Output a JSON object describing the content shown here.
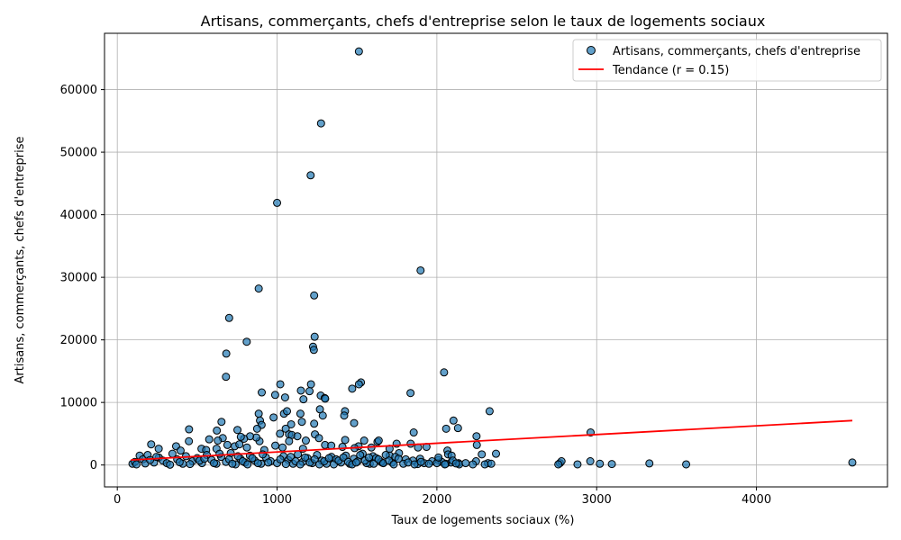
{
  "chart_data": {
    "type": "scatter",
    "title": "Artisans, commerçants, chefs d'entreprise selon le taux de logements sociaux",
    "xlabel": "Taux de logements sociaux (%)",
    "ylabel": "Artisans, commerçants, chefs d'entreprise",
    "xlim": [
      -80,
      4820
    ],
    "ylim": [
      -3500,
      69000
    ],
    "xticks": [
      0,
      1000,
      2000,
      3000,
      4000
    ],
    "yticks": [
      0,
      10000,
      20000,
      30000,
      40000,
      50000,
      60000
    ],
    "grid": true,
    "legend_position": "upper right",
    "colors": {
      "points": "#1f77b4",
      "trend": "#ff0000"
    },
    "series": [
      {
        "name": "Artisans, commerçants, chefs d'entreprise",
        "type": "scatter",
        "points": [
          [
            1512,
            66100
          ],
          [
            1275,
            54600
          ],
          [
            1210,
            46300
          ],
          [
            1000,
            41900
          ],
          [
            1898,
            31100
          ],
          [
            885,
            28200
          ],
          [
            1232,
            27100
          ],
          [
            700,
            23500
          ],
          [
            1235,
            20500
          ],
          [
            810,
            19700
          ],
          [
            1225,
            18900
          ],
          [
            1230,
            18400
          ],
          [
            682,
            17800
          ],
          [
            680,
            14100
          ],
          [
            2045,
            14800
          ],
          [
            1020,
            12900
          ],
          [
            1212,
            12900
          ],
          [
            1525,
            13200
          ],
          [
            1512,
            12900
          ],
          [
            1470,
            12200
          ],
          [
            1149,
            11900
          ],
          [
            1203,
            11800
          ],
          [
            904,
            11600
          ],
          [
            988,
            11200
          ],
          [
            1273,
            11100
          ],
          [
            1298,
            10700
          ],
          [
            1301,
            10600
          ],
          [
            1050,
            10800
          ],
          [
            1165,
            10500
          ],
          [
            1835,
            11500
          ],
          [
            1268,
            8900
          ],
          [
            1425,
            8600
          ],
          [
            1420,
            7900
          ],
          [
            1286,
            7900
          ],
          [
            885,
            8200
          ],
          [
            1043,
            8200
          ],
          [
            1062,
            8600
          ],
          [
            1146,
            8200
          ],
          [
            978,
            7600
          ],
          [
            1155,
            6900
          ],
          [
            1232,
            6600
          ],
          [
            1088,
            6500
          ],
          [
            893,
            7100
          ],
          [
            903,
            6400
          ],
          [
            652,
            6900
          ],
          [
            2330,
            8600
          ],
          [
            2104,
            7100
          ],
          [
            2058,
            5800
          ],
          [
            2132,
            5900
          ],
          [
            1482,
            6700
          ],
          [
            875,
            5800
          ],
          [
            1054,
            5800
          ],
          [
            752,
            5600
          ],
          [
            623,
            5500
          ],
          [
            449,
            5700
          ],
          [
            1855,
            5200
          ],
          [
            2248,
            4600
          ],
          [
            2962,
            5200
          ],
          [
            1075,
            4900
          ],
          [
            1092,
            4800
          ],
          [
            1018,
            5000
          ],
          [
            1127,
            4600
          ],
          [
            1180,
            3900
          ],
          [
            1237,
            4900
          ],
          [
            1262,
            4300
          ],
          [
            1075,
            3800
          ],
          [
            890,
            3800
          ],
          [
            870,
            4400
          ],
          [
            831,
            4600
          ],
          [
            793,
            4200
          ],
          [
            773,
            4500
          ],
          [
            660,
            4300
          ],
          [
            629,
            3900
          ],
          [
            575,
            4100
          ],
          [
            448,
            3800
          ],
          [
            1426,
            4000
          ],
          [
            1545,
            3900
          ],
          [
            1628,
            3700
          ],
          [
            1636,
            3900
          ],
          [
            1748,
            3400
          ],
          [
            1836,
            3400
          ],
          [
            1882,
            2800
          ],
          [
            1935,
            2900
          ],
          [
            2250,
            3200
          ],
          [
            2066,
            2300
          ],
          [
            2070,
            1700
          ],
          [
            2092,
            1500
          ],
          [
            2281,
            1700
          ],
          [
            2370,
            1800
          ],
          [
            2245,
            600
          ],
          [
            212,
            3300
          ],
          [
            259,
            2600
          ],
          [
            368,
            3000
          ],
          [
            396,
            2300
          ],
          [
            527,
            2600
          ],
          [
            556,
            2400
          ],
          [
            621,
            2600
          ],
          [
            689,
            3200
          ],
          [
            735,
            3000
          ],
          [
            764,
            3300
          ],
          [
            811,
            2800
          ],
          [
            920,
            2400
          ],
          [
            989,
            3100
          ],
          [
            1034,
            2800
          ],
          [
            1162,
            2600
          ],
          [
            1300,
            3200
          ],
          [
            1339,
            3100
          ],
          [
            1409,
            2900
          ],
          [
            1510,
            3000
          ],
          [
            1485,
            2700
          ],
          [
            1590,
            2800
          ],
          [
            1704,
            2600
          ],
          [
            1763,
            1900
          ],
          [
            1600,
            1400
          ],
          [
            1705,
            1500
          ],
          [
            1805,
            900
          ],
          [
            1895,
            1000
          ],
          [
            1970,
            600
          ],
          [
            2010,
            800
          ],
          [
            2088,
            400
          ],
          [
            2135,
            300
          ],
          [
            2225,
            100
          ],
          [
            2320,
            300
          ],
          [
            2770,
            300
          ],
          [
            2780,
            600
          ],
          [
            2880,
            100
          ],
          [
            2960,
            600
          ],
          [
            3020,
            200
          ],
          [
            3095,
            150
          ],
          [
            3330,
            250
          ],
          [
            3560,
            100
          ],
          [
            4600,
            400
          ],
          [
            1580,
            200
          ],
          [
            1660,
            350
          ],
          [
            1880,
            150
          ],
          [
            95,
            200
          ],
          [
            110,
            500
          ],
          [
            140,
            1500
          ],
          [
            160,
            900
          ],
          [
            190,
            1600
          ],
          [
            230,
            400
          ],
          [
            260,
            1200
          ],
          [
            285,
            700
          ],
          [
            310,
            300
          ],
          [
            345,
            1800
          ],
          [
            375,
            900
          ],
          [
            410,
            200
          ],
          [
            430,
            1400
          ],
          [
            470,
            600
          ],
          [
            500,
            1100
          ],
          [
            530,
            300
          ],
          [
            560,
            1600
          ],
          [
            590,
            800
          ],
          [
            620,
            200
          ],
          [
            650,
            1300
          ],
          [
            680,
            500
          ],
          [
            710,
            1900
          ],
          [
            740,
            100
          ],
          [
            770,
            1000
          ],
          [
            800,
            400
          ],
          [
            830,
            1500
          ],
          [
            860,
            700
          ],
          [
            900,
            200
          ],
          [
            930,
            1200
          ],
          [
            960,
            600
          ],
          [
            1000,
            300
          ],
          [
            1040,
            1400
          ],
          [
            1070,
            800
          ],
          [
            1100,
            200
          ],
          [
            1130,
            1700
          ],
          [
            1160,
            500
          ],
          [
            1190,
            1100
          ],
          [
            1220,
            300
          ],
          [
            1250,
            1600
          ],
          [
            1280,
            700
          ],
          [
            1310,
            200
          ],
          [
            1340,
            1300
          ],
          [
            1370,
            900
          ],
          [
            1400,
            400
          ],
          [
            1430,
            1500
          ],
          [
            1455,
            200
          ],
          [
            1480,
            1000
          ],
          [
            1505,
            600
          ],
          [
            1535,
            1800
          ],
          [
            1560,
            300
          ],
          [
            1620,
            1100
          ],
          [
            1650,
            500
          ],
          [
            1680,
            1600
          ],
          [
            1720,
            400
          ],
          [
            1740,
            1300
          ],
          [
            1790,
            200
          ],
          [
            1850,
            700
          ],
          [
            1920,
            300
          ],
          [
            2030,
            500
          ],
          [
            2055,
            200
          ],
          [
            120,
            100
          ],
          [
            175,
            250
          ],
          [
            205,
            800
          ],
          [
            245,
            1300
          ],
          [
            330,
            50
          ],
          [
            390,
            450
          ],
          [
            455,
            150
          ],
          [
            515,
            700
          ],
          [
            545,
            1000
          ],
          [
            605,
            300
          ],
          [
            640,
            1800
          ],
          [
            700,
            900
          ],
          [
            720,
            200
          ],
          [
            755,
            1400
          ],
          [
            785,
            600
          ],
          [
            815,
            100
          ],
          [
            845,
            1100
          ],
          [
            880,
            300
          ],
          [
            910,
            1700
          ],
          [
            945,
            400
          ],
          [
            1020,
            900
          ],
          [
            1055,
            150
          ],
          [
            1085,
            1300
          ],
          [
            1115,
            600
          ],
          [
            1145,
            100
          ],
          [
            1175,
            1200
          ],
          [
            1205,
            400
          ],
          [
            1235,
            900
          ],
          [
            1265,
            100
          ],
          [
            1295,
            600
          ],
          [
            1325,
            1100
          ],
          [
            1355,
            100
          ],
          [
            1385,
            700
          ],
          [
            1415,
            1200
          ],
          [
            1445,
            500
          ],
          [
            1470,
            100
          ],
          [
            1495,
            400
          ],
          [
            1520,
            1600
          ],
          [
            1550,
            700
          ],
          [
            1575,
            1200
          ],
          [
            1605,
            200
          ],
          [
            1635,
            900
          ],
          [
            1665,
            300
          ],
          [
            1700,
            700
          ],
          [
            1730,
            100
          ],
          [
            1760,
            1000
          ],
          [
            1820,
            400
          ],
          [
            1860,
            100
          ],
          [
            1900,
            500
          ],
          [
            1950,
            200
          ],
          [
            2000,
            300
          ],
          [
            2100,
            700
          ],
          [
            2140,
            100
          ],
          [
            2180,
            300
          ],
          [
            2300,
            100
          ],
          [
            2340,
            200
          ],
          [
            2760,
            100
          ],
          [
            2010,
            1200
          ],
          [
            2050,
            100
          ],
          [
            2120,
            250
          ]
        ]
      },
      {
        "name": "Tendance (r = 0.15)",
        "type": "line",
        "x": [
          85,
          4600
        ],
        "y": [
          800,
          7100
        ]
      }
    ]
  }
}
